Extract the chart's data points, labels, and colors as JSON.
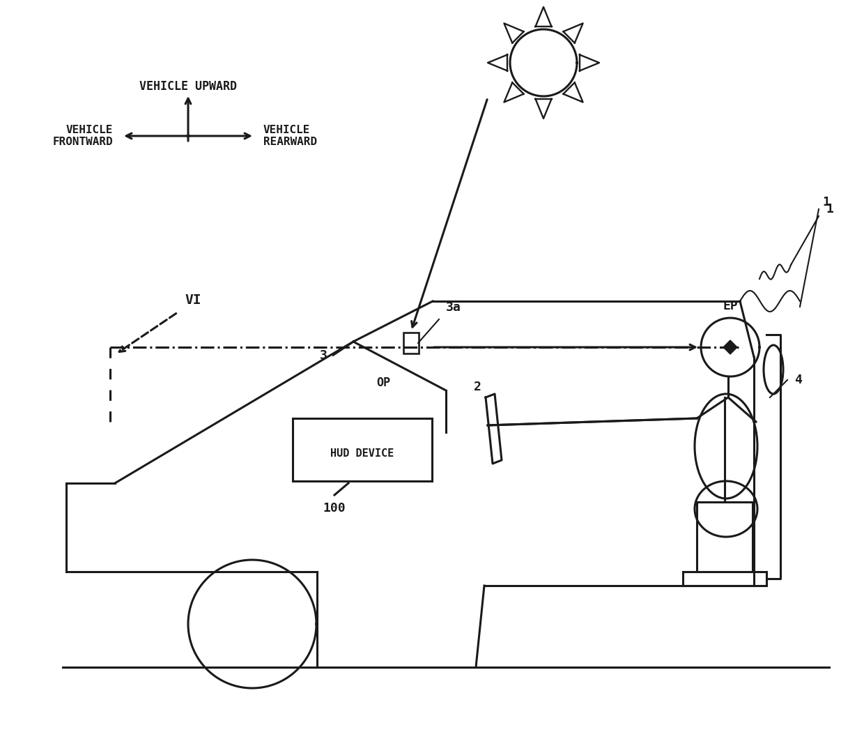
{
  "bg_color": "#ffffff",
  "line_color": "#1a1a1a",
  "lw": 2.2,
  "fig_width": 12.4,
  "fig_height": 10.7,
  "labels": {
    "vehicle_upward": "VEHICLE UPWARD",
    "vehicle_frontward": "VEHICLE\nFRONTWARD",
    "vehicle_rearward": "VEHICLE\nREARWARD",
    "vi": "VI",
    "label_1": "1",
    "label_2": "2",
    "label_3": "3",
    "label_3a": "3a",
    "label_4": "4",
    "label_100": "100",
    "label_ep": "EP",
    "label_op": "OP",
    "hud": "HUD DEVICE"
  }
}
